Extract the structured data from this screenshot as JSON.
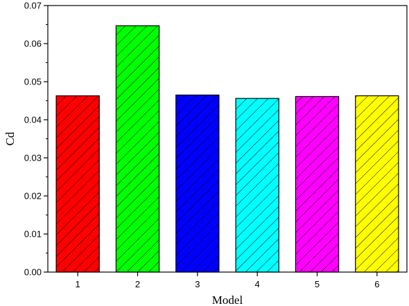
{
  "chart_data": {
    "type": "bar",
    "categories": [
      "1",
      "2",
      "3",
      "4",
      "5",
      "6"
    ],
    "values": [
      0.0463,
      0.0647,
      0.0465,
      0.0456,
      0.0461,
      0.0463
    ],
    "colors": [
      "#ff0000",
      "#00ff00",
      "#0000ff",
      "#00ffff",
      "#ff00ff",
      "#ffff00"
    ],
    "bar_pattern": "diagonal-hatch",
    "xlabel": "Model",
    "ylabel": "Cd",
    "ylim": [
      0,
      0.07
    ],
    "yticks": [
      "0.00",
      "0.01",
      "0.02",
      "0.03",
      "0.04",
      "0.05",
      "0.06",
      "0.07"
    ],
    "grid": false,
    "legend": "none"
  }
}
